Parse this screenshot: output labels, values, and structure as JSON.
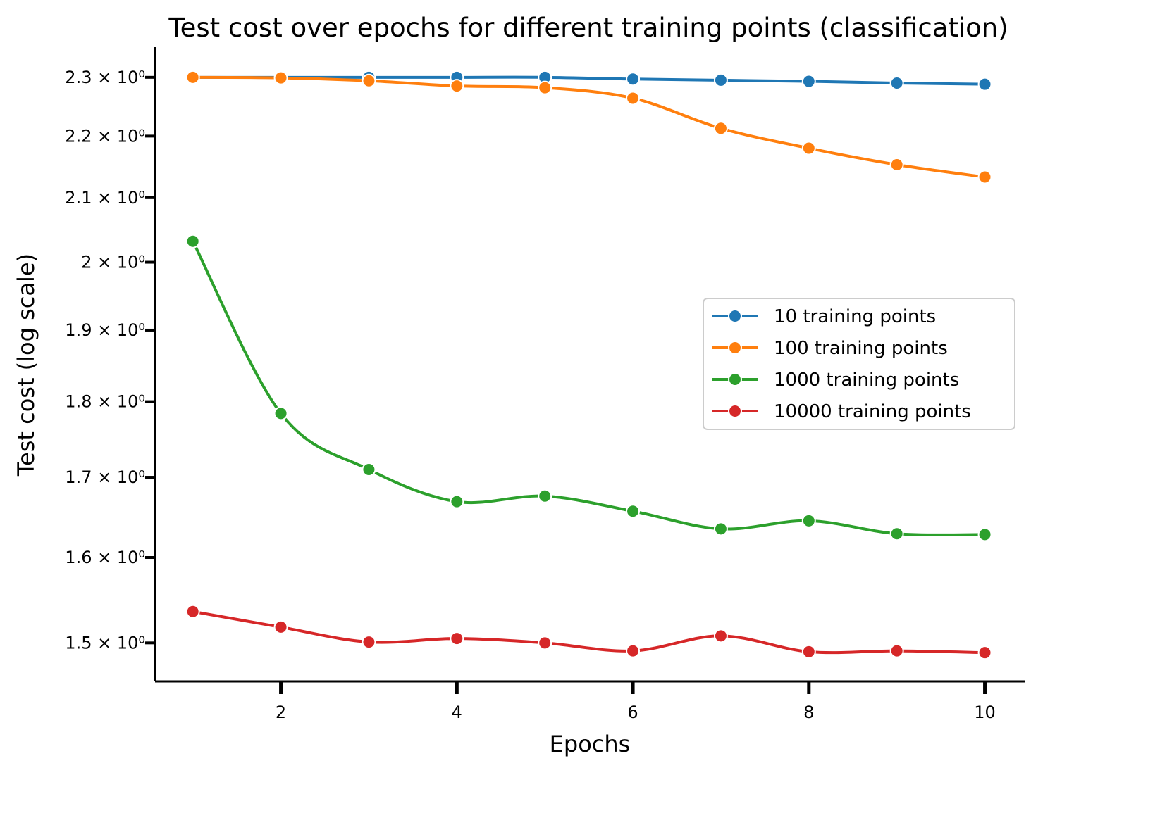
{
  "chart_data": {
    "type": "line",
    "title": "Test cost over epochs for different training points (classification)",
    "xlabel": "Epochs",
    "ylabel": "Test cost (log scale)",
    "yscale": "log",
    "xlim": [
      0.57,
      10.46
    ],
    "ylim": [
      1.457,
      2.353
    ],
    "grid": false,
    "legend_placement": "center-right",
    "x": [
      1,
      2,
      3,
      4,
      5,
      6,
      7,
      8,
      9,
      10
    ],
    "xticks": [
      2,
      4,
      6,
      8,
      10
    ],
    "xtick_labels": [
      "2",
      "4",
      "6",
      "8",
      "10"
    ],
    "yticks": [
      2.3,
      2.2,
      2.1,
      2.0,
      1.9,
      1.8,
      1.7,
      1.6,
      1.5
    ],
    "ytick_labels": [
      "2.3 × 10⁰",
      "2.2 × 10⁰",
      "2.1 × 10⁰",
      "2 × 10⁰",
      "1.9 × 10⁰",
      "1.8 × 10⁰",
      "1.7 × 10⁰",
      "1.6 × 10⁰",
      "1.5 × 10⁰"
    ],
    "series": [
      {
        "name": "10 training points",
        "color": "#1f77b4",
        "values": [
          2.3,
          2.3,
          2.3,
          2.3,
          2.3,
          2.297,
          2.295,
          2.293,
          2.29,
          2.288
        ]
      },
      {
        "name": "100 training points",
        "color": "#ff7f0e",
        "values": [
          2.3,
          2.299,
          2.294,
          2.285,
          2.282,
          2.264,
          2.213,
          2.18,
          2.153,
          2.133
        ]
      },
      {
        "name": "1000 training points",
        "color": "#2ca02c",
        "values": [
          2.032,
          1.784,
          1.71,
          1.669,
          1.676,
          1.657,
          1.635,
          1.645,
          1.629,
          1.628
        ]
      },
      {
        "name": "10000 training points",
        "color": "#d62728",
        "values": [
          1.536,
          1.518,
          1.501,
          1.505,
          1.5,
          1.491,
          1.508,
          1.49,
          1.491,
          1.489
        ]
      }
    ]
  }
}
